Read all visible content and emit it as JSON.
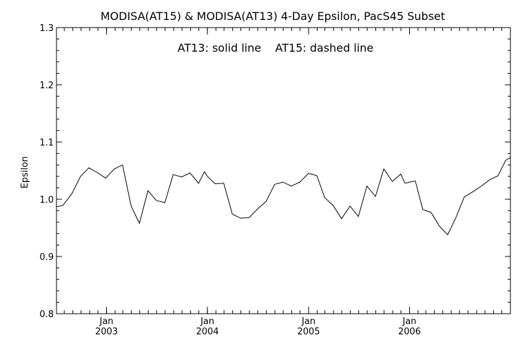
{
  "chart_data": {
    "type": "line",
    "title": "MODISA(AT15) & MODISA(AT13) 4-Day Epsilon, PacS45 Subset",
    "annotation": "AT13: solid line    AT15: dashed line",
    "ylabel": "Epsilon",
    "xlabel": "",
    "ylim": [
      0.8,
      1.3
    ],
    "xlim": [
      "2002-07-04",
      "2007-01-01"
    ],
    "grid": false,
    "y_ticks": [
      {
        "value": 0.8,
        "label": "0.8"
      },
      {
        "value": 0.9,
        "label": "0.9"
      },
      {
        "value": 1.0,
        "label": "1.0"
      },
      {
        "value": 1.1,
        "label": "1.1"
      },
      {
        "value": 1.2,
        "label": "1.2"
      },
      {
        "value": 1.3,
        "label": "1.3"
      }
    ],
    "x_ticks": [
      {
        "date": "2003-01-01",
        "month": "Jan",
        "year": "2003"
      },
      {
        "date": "2004-01-01",
        "month": "Jan",
        "year": "2004"
      },
      {
        "date": "2005-01-01",
        "month": "Jan",
        "year": "2005"
      },
      {
        "date": "2006-01-01",
        "month": "Jan",
        "year": "2006"
      }
    ],
    "series": [
      {
        "name": "AT13",
        "style": "solid",
        "color": "#000000",
        "x": [
          "2002-07-04",
          "2002-07-27",
          "2002-08-29",
          "2002-09-29",
          "2002-10-29",
          "2002-11-27",
          "2002-12-29",
          "2003-01-29",
          "2003-02-28",
          "2003-03-31",
          "2003-04-30",
          "2003-05-31",
          "2003-06-30",
          "2003-07-31",
          "2003-08-30",
          "2003-09-30",
          "2003-10-30",
          "2003-11-30",
          "2003-12-21",
          "2004-01-01",
          "2004-01-29",
          "2004-02-29",
          "2004-03-31",
          "2004-04-30",
          "2004-05-31",
          "2004-06-30",
          "2004-07-31",
          "2004-08-31",
          "2004-09-30",
          "2004-10-31",
          "2004-11-30",
          "2004-12-31",
          "2005-01-12",
          "2005-01-31",
          "2005-02-28",
          "2005-03-31",
          "2005-04-30",
          "2005-05-31",
          "2005-06-30",
          "2005-07-31",
          "2005-08-31",
          "2005-09-30",
          "2005-10-31",
          "2005-11-30",
          "2005-12-16",
          "2006-01-01",
          "2006-01-22",
          "2006-02-18",
          "2006-03-20",
          "2006-04-19",
          "2006-05-19",
          "2006-06-18",
          "2006-07-18",
          "2006-08-18",
          "2006-09-18",
          "2006-10-18",
          "2006-11-17",
          "2006-12-15",
          "2007-01-01"
        ],
        "y": [
          0.987,
          0.989,
          1.01,
          1.04,
          1.055,
          1.047,
          1.037,
          1.053,
          1.06,
          0.988,
          0.958,
          1.015,
          0.998,
          0.994,
          1.043,
          1.039,
          1.046,
          1.028,
          1.048,
          1.04,
          1.027,
          1.028,
          0.974,
          0.967,
          0.968,
          0.983,
          0.996,
          1.026,
          1.03,
          1.023,
          1.03,
          1.045,
          1.044,
          1.041,
          1.003,
          0.989,
          0.966,
          0.988,
          0.97,
          1.023,
          1.005,
          1.053,
          1.031,
          1.044,
          1.028,
          1.03,
          1.032,
          0.982,
          0.977,
          0.953,
          0.938,
          0.968,
          1.004,
          1.013,
          1.023,
          1.034,
          1.041,
          1.068,
          1.073
        ]
      }
    ]
  }
}
